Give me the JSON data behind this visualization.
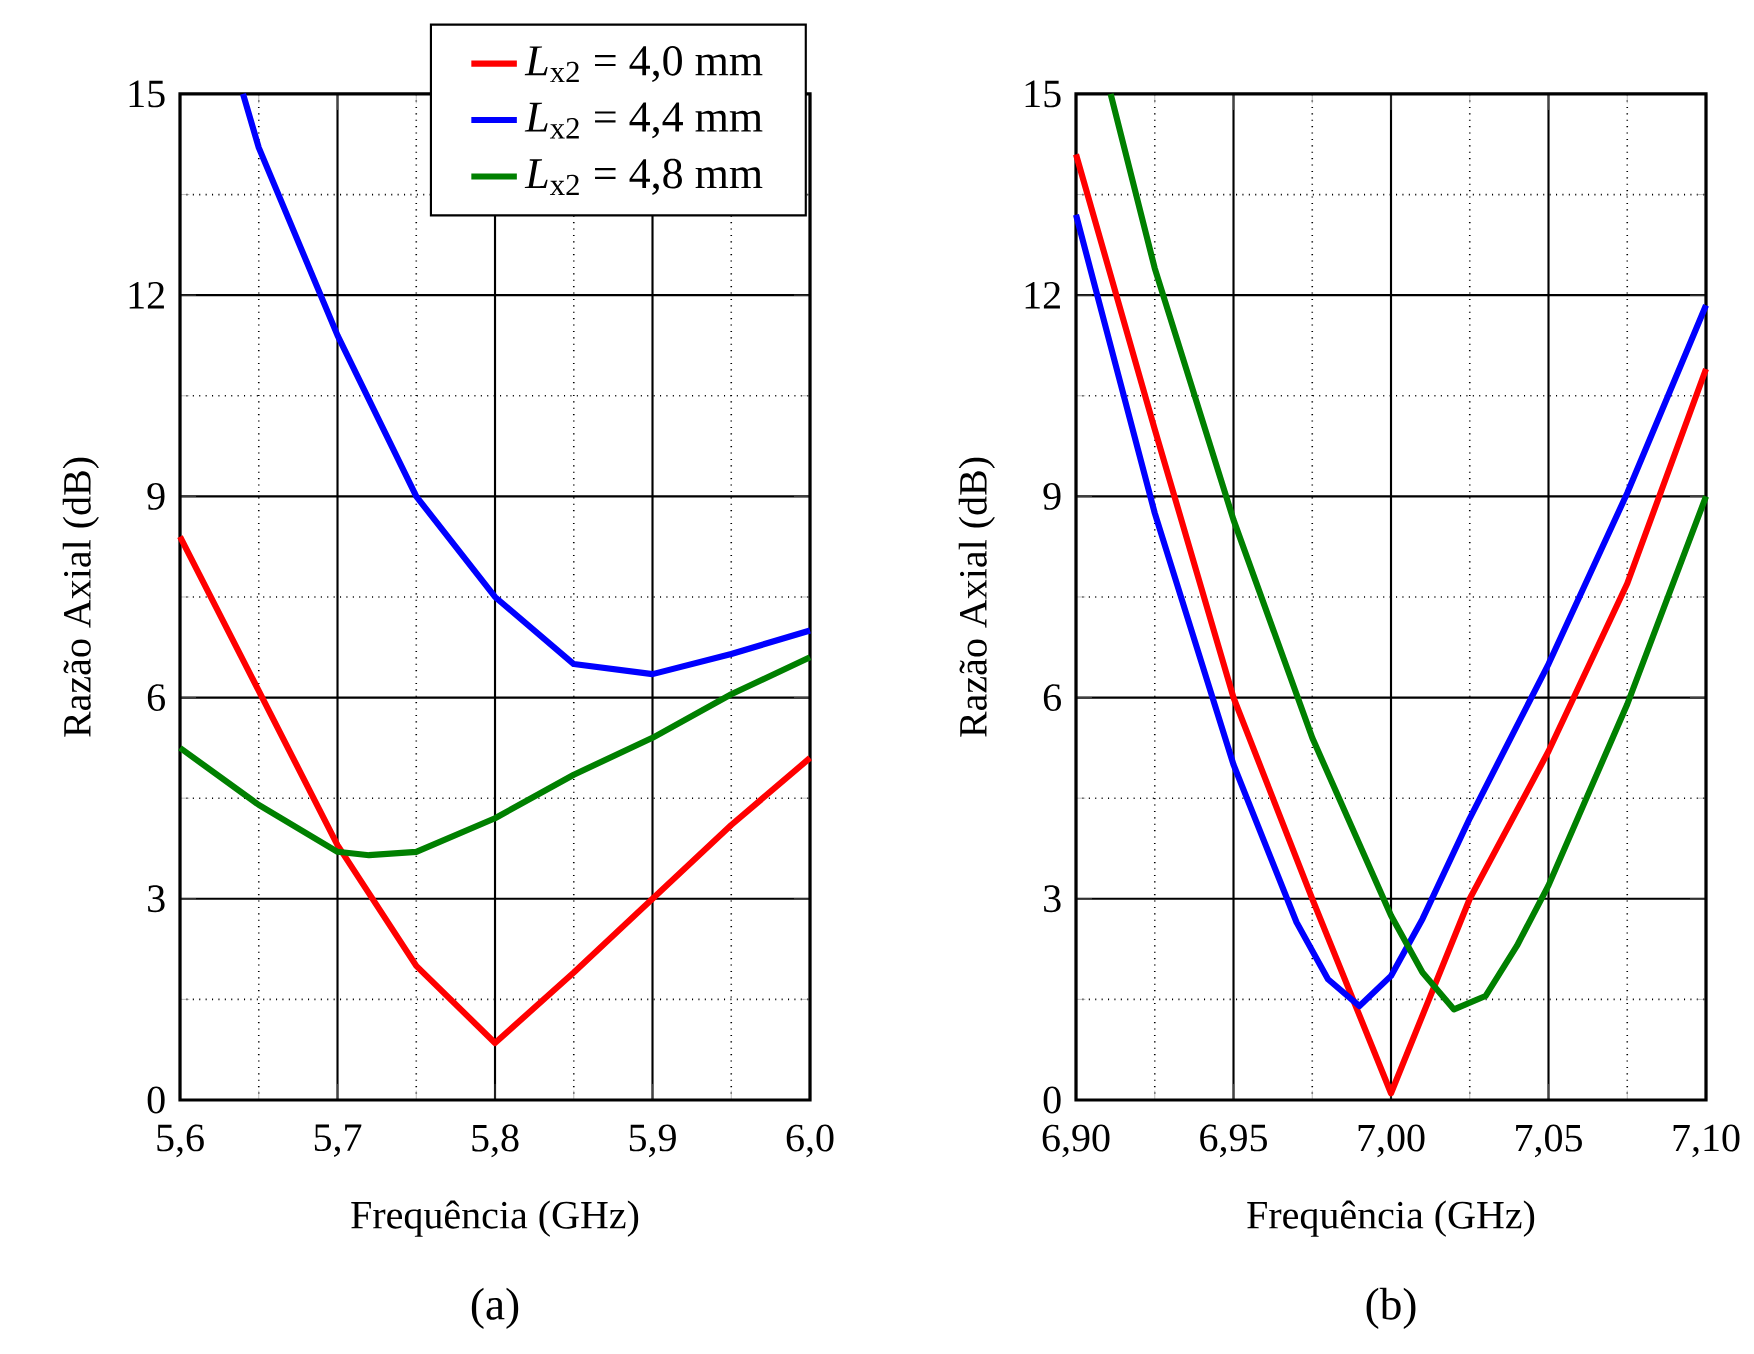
{
  "chart_data": [
    {
      "type": "line",
      "xlabel": "Frequência (GHz)",
      "ylabel": "Razão Axial (dB)",
      "annotations": [
        "(a)"
      ],
      "xlim": [
        5.6,
        6.0
      ],
      "ylim": [
        0,
        15
      ],
      "xticks": [
        {
          "value": 5.6,
          "label": "5,6"
        },
        {
          "value": 5.65,
          "label": null
        },
        {
          "value": 5.7,
          "label": "5,7"
        },
        {
          "value": 5.75,
          "label": null
        },
        {
          "value": 5.8,
          "label": "5,8"
        },
        {
          "value": 5.85,
          "label": null
        },
        {
          "value": 5.9,
          "label": "5,9"
        },
        {
          "value": 5.95,
          "label": null
        },
        {
          "value": 6.0,
          "label": "6,0"
        }
      ],
      "yticks": [
        0,
        {
          "value": 1.5,
          "label": null
        },
        3,
        {
          "value": 4.5,
          "label": null
        },
        6,
        {
          "value": 7.5,
          "label": null
        },
        9,
        {
          "value": 10.5,
          "label": null
        },
        12,
        {
          "value": 13.5,
          "label": null
        },
        15
      ],
      "grid": true,
      "legend": "top right",
      "series": [
        {
          "name": "*L*$_{x2}$ = 4,0 mm",
          "color": "#ff0000",
          "x": [
            5.6,
            5.65,
            5.7,
            5.75,
            5.8,
            5.85,
            5.9,
            5.95,
            6.0
          ],
          "values": [
            8.4,
            6.1,
            3.8,
            2.0,
            0.85,
            1.9,
            3.0,
            4.1,
            5.1
          ]
        },
        {
          "name": "*L*$_{x2}$ = 4,4 mm",
          "color": "#0000ff",
          "x": [
            5.64,
            5.65,
            5.7,
            5.75,
            5.8,
            5.85,
            5.9,
            5.95,
            6.0
          ],
          "values": [
            15,
            14.2,
            11.4,
            9.0,
            7.5,
            6.5,
            6.35,
            6.65,
            7.0
          ]
        },
        {
          "name": "*L*$_{x2}$ = 4,8 mm",
          "color": "#008000",
          "x": [
            5.6,
            5.65,
            5.7,
            5.72,
            5.75,
            5.8,
            5.85,
            5.9,
            5.95,
            6.0
          ],
          "values": [
            5.25,
            4.4,
            3.7,
            3.65,
            3.7,
            4.2,
            4.85,
            5.4,
            6.05,
            6.6
          ]
        }
      ]
    },
    {
      "type": "line",
      "xlabel": "Frequência (GHz)",
      "ylabel": "Razão Axial (dB)",
      "annotations": [
        "(b)"
      ],
      "xlim": [
        6.9,
        7.1
      ],
      "ylim": [
        0,
        15
      ],
      "xticks": [
        {
          "value": 6.9,
          "label": "6,90"
        },
        {
          "value": 6.925,
          "label": null
        },
        {
          "value": 6.95,
          "label": "6,95"
        },
        {
          "value": 6.975,
          "label": null
        },
        {
          "value": 7.0,
          "label": "7,00"
        },
        {
          "value": 7.025,
          "label": null
        },
        {
          "value": 7.05,
          "label": "7,05"
        },
        {
          "value": 7.075,
          "label": null
        },
        {
          "value": 7.1,
          "label": "7,10"
        }
      ],
      "yticks": [
        0,
        {
          "value": 1.5,
          "label": null
        },
        3,
        {
          "value": 4.5,
          "label": null
        },
        6,
        {
          "value": 7.5,
          "label": null
        },
        9,
        {
          "value": 10.5,
          "label": null
        },
        12,
        {
          "value": 13.5,
          "label": null
        },
        15
      ],
      "grid": true,
      "series": [
        {
          "color": "#ff0000",
          "x": [
            6.9,
            6.925,
            6.95,
            6.975,
            7.0,
            7.025,
            7.05,
            7.075,
            7.1
          ],
          "values": [
            14.1,
            10.0,
            6.0,
            3.0,
            0.1,
            3.0,
            5.2,
            7.7,
            10.9
          ]
        },
        {
          "color": "#0000ff",
          "x": [
            6.9,
            6.925,
            6.95,
            6.97,
            6.98,
            6.99,
            7.0,
            7.01,
            7.025,
            7.05,
            7.075,
            7.1
          ],
          "values": [
            13.2,
            8.75,
            5.0,
            2.65,
            1.8,
            1.4,
            1.85,
            2.7,
            4.2,
            6.5,
            9.05,
            11.85
          ]
        },
        {
          "color": "#008000",
          "x": [
            6.911,
            6.925,
            6.95,
            6.975,
            7.0,
            7.01,
            7.02,
            7.03,
            7.04,
            7.05,
            7.075,
            7.1
          ],
          "values": [
            15,
            12.4,
            8.65,
            5.4,
            2.75,
            1.9,
            1.35,
            1.55,
            2.3,
            3.2,
            5.9,
            9.0
          ]
        }
      ]
    }
  ]
}
